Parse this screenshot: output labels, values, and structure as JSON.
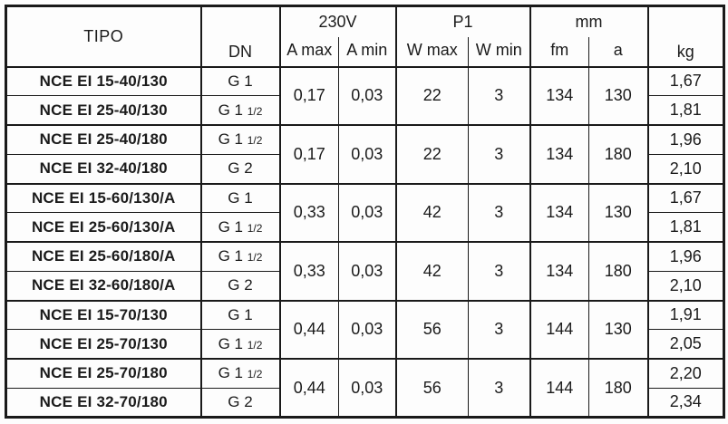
{
  "colors": {
    "border": "#1a1a1a",
    "text": "#1b1b1b",
    "background": "#fdfdfd"
  },
  "table": {
    "header": {
      "tipo": "TIPO",
      "dn": "DN",
      "kg": "kg",
      "groups": [
        {
          "label": "230V",
          "sub": [
            "A max",
            "A min"
          ]
        },
        {
          "label": "P1",
          "sub": [
            "W max",
            "W min"
          ]
        },
        {
          "label": "mm",
          "sub": [
            "fm",
            "a"
          ]
        }
      ]
    },
    "row_groups": [
      {
        "shared": {
          "a_max": "0,17",
          "a_min": "0,03",
          "w_max": "22",
          "w_min": "3",
          "fm": "134",
          "a": "130"
        },
        "rows": [
          {
            "tipo": "NCE EI 15-40/130",
            "dn": "G 1",
            "kg": "1,67"
          },
          {
            "tipo": "NCE EI 25-40/130",
            "dn": "G 1 1/2",
            "kg": "1,81"
          }
        ]
      },
      {
        "shared": {
          "a_max": "0,17",
          "a_min": "0,03",
          "w_max": "22",
          "w_min": "3",
          "fm": "134",
          "a": "180"
        },
        "rows": [
          {
            "tipo": "NCE EI 25-40/180",
            "dn": "G 1 1/2",
            "kg": "1,96"
          },
          {
            "tipo": "NCE EI 32-40/180",
            "dn": "G 2",
            "kg": "2,10"
          }
        ]
      },
      {
        "shared": {
          "a_max": "0,33",
          "a_min": "0,03",
          "w_max": "42",
          "w_min": "3",
          "fm": "134",
          "a": "130"
        },
        "rows": [
          {
            "tipo": "NCE EI 15-60/130/A",
            "dn": "G 1",
            "kg": "1,67"
          },
          {
            "tipo": "NCE EI 25-60/130/A",
            "dn": "G 1 1/2",
            "kg": "1,81"
          }
        ]
      },
      {
        "shared": {
          "a_max": "0,33",
          "a_min": "0,03",
          "w_max": "42",
          "w_min": "3",
          "fm": "134",
          "a": "180"
        },
        "rows": [
          {
            "tipo": "NCE EI 25-60/180/A",
            "dn": "G 1 1/2",
            "kg": "1,96"
          },
          {
            "tipo": "NCE EI 32-60/180/A",
            "dn": "G 2",
            "kg": "2,10"
          }
        ]
      },
      {
        "shared": {
          "a_max": "0,44",
          "a_min": "0,03",
          "w_max": "56",
          "w_min": "3",
          "fm": "144",
          "a": "130"
        },
        "rows": [
          {
            "tipo": "NCE EI 15-70/130",
            "dn": "G 1",
            "kg": "1,91"
          },
          {
            "tipo": "NCE EI 25-70/130",
            "dn": "G 1 1/2",
            "kg": "2,05"
          }
        ]
      },
      {
        "shared": {
          "a_max": "0,44",
          "a_min": "0,03",
          "w_max": "56",
          "w_min": "3",
          "fm": "144",
          "a": "180"
        },
        "rows": [
          {
            "tipo": "NCE EI 25-70/180",
            "dn": "G 1 1/2",
            "kg": "2,20"
          },
          {
            "tipo": "NCE EI 32-70/180",
            "dn": "G 2",
            "kg": "2,34"
          }
        ]
      }
    ]
  }
}
